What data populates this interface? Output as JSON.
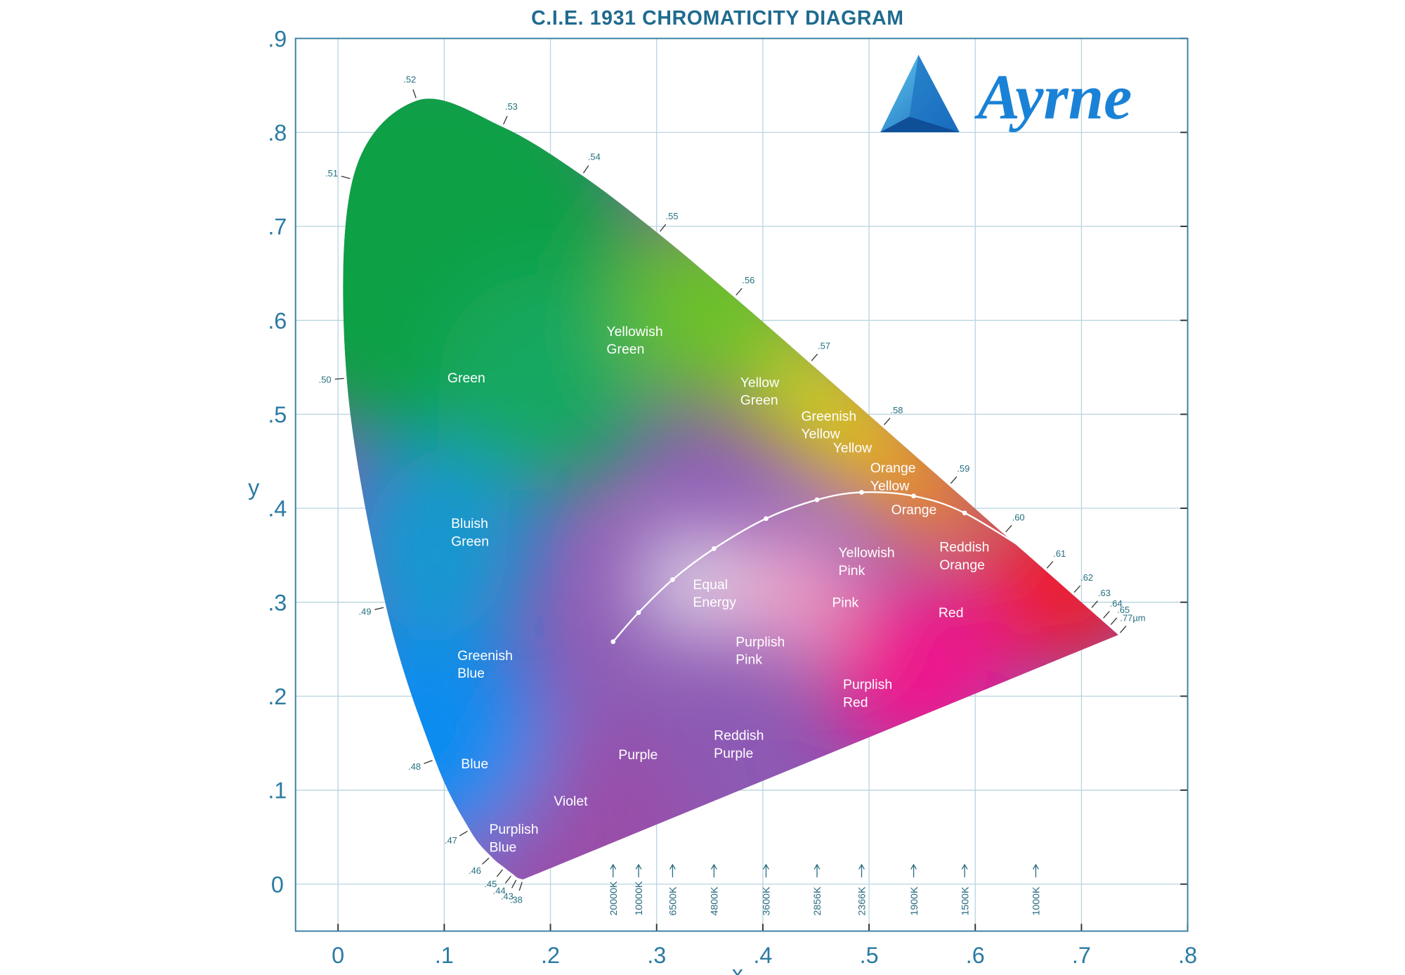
{
  "chart_data": {
    "type": "chromaticity",
    "title": "C.I.E. 1931 CHROMATICITY DIAGRAM",
    "x_label": "x",
    "y_label": "y",
    "xlim": [
      -0.04,
      0.8
    ],
    "ylim": [
      -0.05,
      0.9
    ],
    "xticks": [
      0,
      {
        "value": 0.1,
        "label": ".1"
      },
      {
        "value": 0.2,
        "label": ".2"
      },
      {
        "value": 0.3,
        "label": ".3"
      },
      {
        "value": 0.4,
        "label": ".4"
      },
      {
        "value": 0.5,
        "label": ".5"
      },
      {
        "value": 0.6,
        "label": ".6"
      },
      {
        "value": 0.7,
        "label": ".7"
      },
      {
        "value": 0.8,
        "label": ".8"
      }
    ],
    "yticks": [
      0,
      {
        "value": 0.1,
        "label": ".1"
      },
      {
        "value": 0.2,
        "label": ".2"
      },
      {
        "value": 0.3,
        "label": ".3"
      },
      {
        "value": 0.4,
        "label": ".4"
      },
      {
        "value": 0.5,
        "label": ".5"
      },
      {
        "value": 0.6,
        "label": ".6"
      },
      {
        "value": 0.7,
        "label": ".7"
      },
      {
        "value": 0.8,
        "label": ".8"
      },
      {
        "value": 0.9,
        "label": ".9"
      }
    ],
    "grid": true,
    "spectral_locus": {
      "x": [
        0.1741,
        0.1689,
        0.1644,
        0.1566,
        0.144,
        0.1241,
        0.0913,
        0.0454,
        0.0082,
        0.0139,
        0.0743,
        0.1547,
        0.2296,
        0.3016,
        0.3731,
        0.4441,
        0.5125,
        0.5752,
        0.627,
        0.6658,
        0.6915,
        0.7079,
        0.719,
        0.726,
        0.7347
      ],
      "y": [
        0.005,
        0.0069,
        0.0109,
        0.0177,
        0.0297,
        0.0578,
        0.1327,
        0.295,
        0.5384,
        0.7502,
        0.8338,
        0.8059,
        0.7543,
        0.6923,
        0.6245,
        0.5547,
        0.4866,
        0.4242,
        0.3725,
        0.334,
        0.3083,
        0.292,
        0.2809,
        0.274,
        0.2653
      ],
      "labels": [
        ".38",
        ".43",
        ".44",
        ".45",
        ".46",
        ".47",
        ".48",
        ".49",
        ".50",
        ".51",
        ".52",
        ".53",
        ".54",
        ".55",
        ".56",
        ".57",
        ".58",
        ".59",
        ".60",
        ".61",
        ".62",
        ".63",
        ".64",
        ".65",
        ".77µm"
      ]
    },
    "planckian_locus": {
      "x": [
        0.259,
        0.283,
        0.315,
        0.354,
        0.403,
        0.451,
        0.493,
        0.542,
        0.59,
        0.657
      ],
      "y": [
        0.258,
        0.289,
        0.324,
        0.357,
        0.389,
        0.409,
        0.417,
        0.413,
        0.395,
        0.349
      ],
      "labels": [
        "20000K",
        "10000K",
        "6500K",
        "4800K",
        "3600K",
        "2856K",
        "2366K",
        "1900K",
        "1500K",
        "1000K"
      ]
    },
    "regions": [
      [
        "Green"
      ],
      [
        "Yellowish",
        "Green"
      ],
      [
        "Yellow",
        "Green"
      ],
      [
        "Greenish",
        "Yellow"
      ],
      [
        "Yellow"
      ],
      [
        "Orange",
        "Yellow"
      ],
      [
        "Orange"
      ],
      [
        "Bluish",
        "Green"
      ],
      [
        "Equal",
        "Energy"
      ],
      [
        "Yellowish",
        "Pink"
      ],
      [
        "Reddish",
        "Orange"
      ],
      [
        "Pink"
      ],
      [
        "Red"
      ],
      [
        "Purplish",
        "Pink"
      ],
      [
        "Greenish",
        "Blue"
      ],
      [
        "Purplish",
        "Red"
      ],
      [
        "Blue"
      ],
      [
        "Purple"
      ],
      [
        "Reddish",
        "Purple"
      ],
      [
        "Violet"
      ],
      [
        "Purplish",
        "Blue"
      ]
    ],
    "logo": "Ayrne"
  }
}
